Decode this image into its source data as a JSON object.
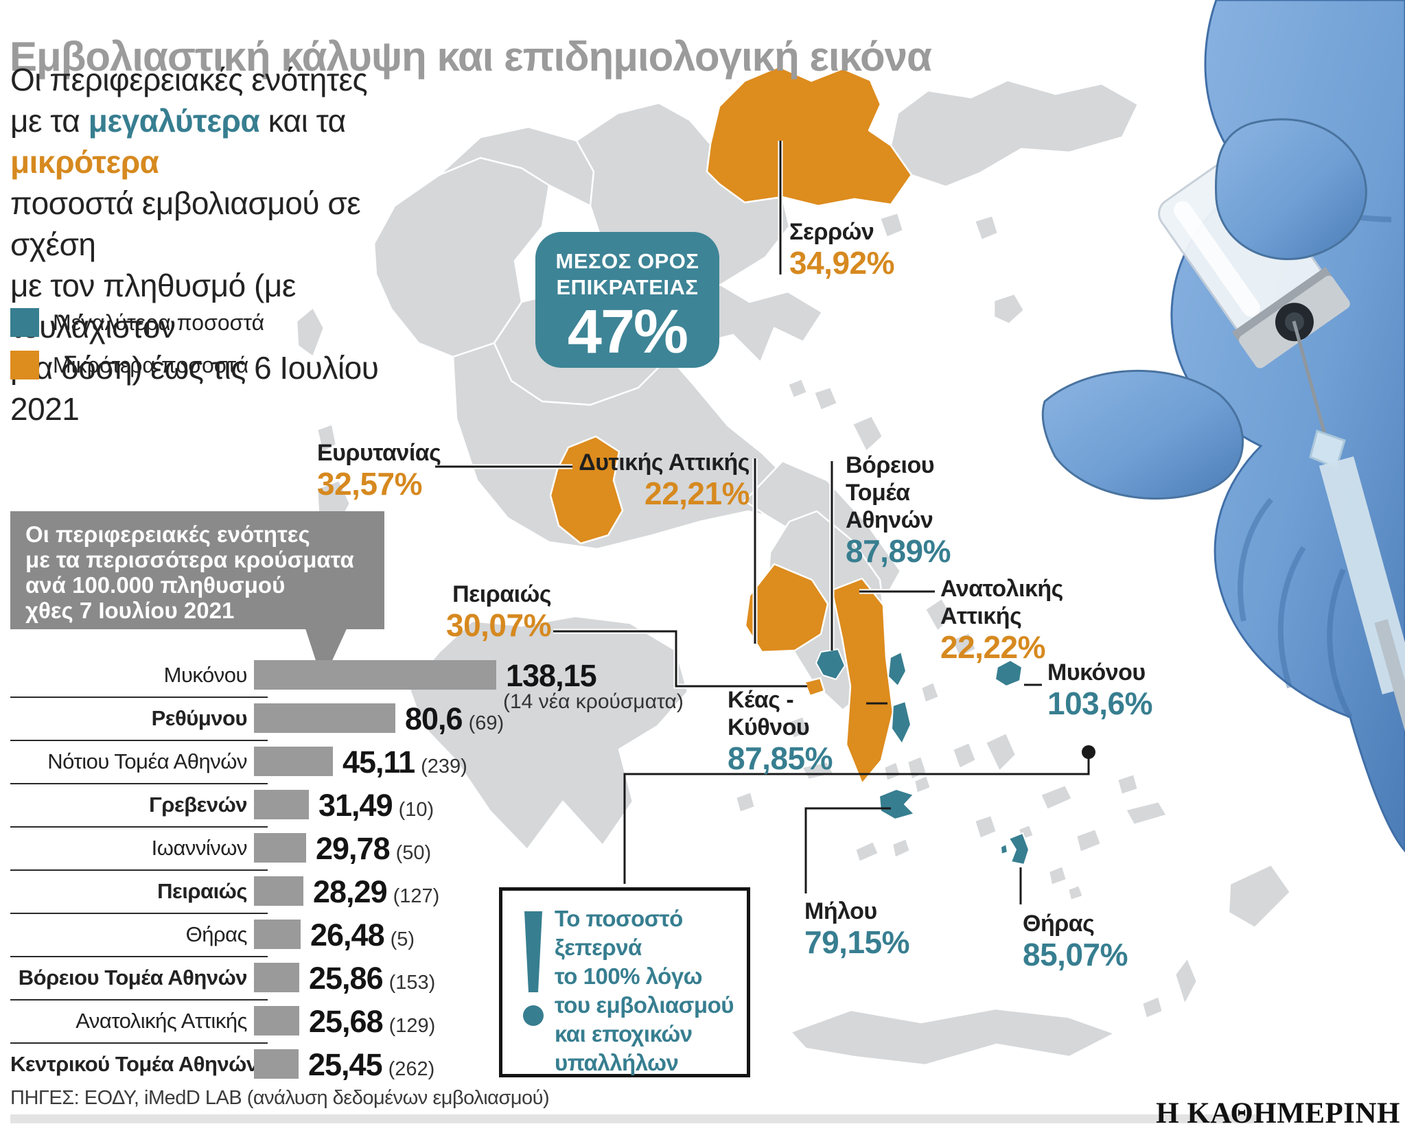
{
  "title": "Εμβολιαστική κάλυψη και επιδημιολογική εικόνα",
  "subtitle_segments": [
    {
      "text": "Οι περιφερειακές ενότητες\nμε τα ",
      "tone": "plain"
    },
    {
      "text": "μεγαλύτερα",
      "tone": "high"
    },
    {
      "text": " και τα ",
      "tone": "plain"
    },
    {
      "text": "μικρότερα",
      "tone": "low"
    },
    {
      "text": "\nποσοστά εμβολιασμού σε σχέση\nμε τον πληθυσμό (με τουλάχιστον\nμία δόση) έως τις 6 Ιουλίου 2021",
      "tone": "plain"
    }
  ],
  "legend": [
    {
      "label": "Μεγαλύτερα ποσοστά",
      "tone": "high"
    },
    {
      "label": "Μικρότερα ποσοστά",
      "tone": "low"
    }
  ],
  "average_box": {
    "line1": "ΜΕΣΟΣ ΟΡΟΣ",
    "line2": "ΕΠΙΚΡΑΤΕΙΑΣ",
    "value": "47%"
  },
  "map_callouts": [
    {
      "id": "serron",
      "name": "Σερρών",
      "value": "34,92%",
      "tone": "low"
    },
    {
      "id": "evrytanias",
      "name": "Ευρυτανίας",
      "value": "32,57%",
      "tone": "low"
    },
    {
      "id": "dytikis-attikis",
      "name": "Δυτικής Αττικής",
      "value": "22,21%",
      "tone": "low"
    },
    {
      "id": "voreiou-tomea",
      "name": "Βόρειου Τομέα Αθηνών",
      "value": "87,89%",
      "tone": "high"
    },
    {
      "id": "peiraios",
      "name": "Πειραιώς",
      "value": "30,07%",
      "tone": "low"
    },
    {
      "id": "anatolikis-attikis",
      "name": "Ανατολικής Αττικής",
      "value": "22,22%",
      "tone": "low"
    },
    {
      "id": "keas-kythnou",
      "name": "Κέας - Κύθνου",
      "value": "87,85%",
      "tone": "high"
    },
    {
      "id": "mykonou",
      "name": "Μυκόνου",
      "value": "103,6%",
      "tone": "high"
    },
    {
      "id": "milou",
      "name": "Μήλου",
      "value": "79,15%",
      "tone": "high"
    },
    {
      "id": "thiras",
      "name": "Θήρας",
      "value": "85,07%",
      "tone": "high"
    }
  ],
  "cases_box": {
    "text": "Οι περιφερειακές ενότητες\nμε τα περισσότερα κρούσματα\nανά 100.000 πληθυσμού\nχθες 7 Ιουλίου 2021"
  },
  "chart_data": {
    "type": "bar",
    "orientation": "horizontal",
    "title": "Οι περιφερειακές ενότητες με τα περισσότερα κρούσματα ανά 100.000 πληθυσμού χθες 7 Ιουλίου 2021",
    "categories": [
      "Μυκόνου",
      "Ρεθύμνου",
      "Νότιου Τομέα Αθηνών",
      "Γρεβενών",
      "Ιωαννίνων",
      "Πειραιώς",
      "Θήρας",
      "Βόρειου Τομέα Αθηνών",
      "Ανατολικής Αττικής",
      "Κεντρικού Τομέα Αθηνών"
    ],
    "values": [
      138.15,
      80.6,
      45.11,
      31.49,
      29.78,
      28.29,
      26.48,
      25.86,
      25.68,
      25.45
    ],
    "new_cases": [
      14,
      69,
      239,
      10,
      50,
      127,
      5,
      153,
      129,
      262
    ],
    "value_labels": [
      "138,15",
      "80,6",
      "45,11",
      "31,49",
      "29,78",
      "28,29",
      "26,48",
      "25,86",
      "25,68",
      "25,45"
    ],
    "count_labels": [
      "(14 νέα κρούσματα)",
      "(69)",
      "(239)",
      "(10)",
      "(50)",
      "(127)",
      "(5)",
      "(153)",
      "(129)",
      "(262)"
    ],
    "bold_flags": [
      false,
      true,
      false,
      true,
      false,
      true,
      false,
      true,
      false,
      true
    ],
    "xlim": [
      0,
      140
    ],
    "bar_color": "#9a9a9a"
  },
  "note_box": {
    "text": "Το ποσοστό\nξεπερνά\nτο 100% λόγω\nτου εμβολιασμού\nκαι εποχικών\nυπαλλήλων"
  },
  "footer": {
    "sources": "ΠΗΓΕΣ: ΕΟΔΥ, iMedD LAB (ανάλυση δεδομένων εμβολιασμού)",
    "brand": "Η ΚΑΘΗΜΕΡΙΝΗ"
  },
  "colors": {
    "teal": "#377e90",
    "teal_box": "#3d8496",
    "orange": "#d6891f",
    "title_gray": "#9b9b9b",
    "map_gray": "#d5d7d9",
    "bar_gray": "#9a9a9a",
    "box_gray": "#8a8a8a",
    "line_black": "#1a1a1a"
  }
}
